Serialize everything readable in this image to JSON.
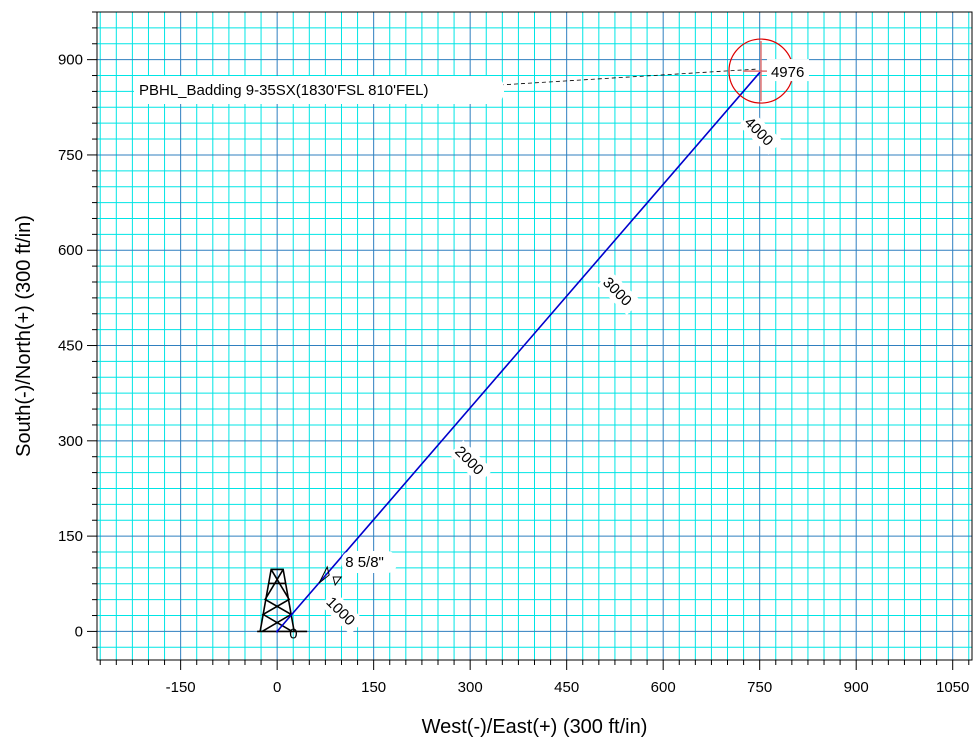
{
  "chart_data": {
    "type": "line",
    "xlabel": "West(-)/East(+) (300 ft/in)",
    "ylabel": "South(-)/North(+) (300 ft/in)",
    "xlim": [
      -280,
      1080
    ],
    "ylim": [
      -45,
      975
    ],
    "x_ticks": [
      -150,
      0,
      150,
      300,
      450,
      600,
      750,
      900,
      1050
    ],
    "y_ticks": [
      0,
      150,
      300,
      450,
      600,
      750,
      900
    ],
    "x_tick_labels": [
      "-150",
      "0",
      "150",
      "300",
      "450",
      "600",
      "750",
      "900",
      "1050"
    ],
    "y_tick_labels": [
      "0",
      "150",
      "300",
      "450",
      "600",
      "750",
      "900"
    ],
    "grid": true,
    "series": [
      {
        "values": [
          {
            "x": 0,
            "y": 0
          },
          {
            "x": 752,
            "y": 882
          }
        ]
      }
    ],
    "md_labels": [
      {
        "md": "0",
        "x": 25,
        "y": 0
      },
      {
        "md": "1000",
        "x": 75,
        "y": 45
      },
      {
        "md": "2000",
        "x": 275,
        "y": 282
      },
      {
        "md": "3000",
        "x": 505,
        "y": 548
      },
      {
        "md": "4000",
        "x": 725,
        "y": 800
      },
      {
        "md": "4976",
        "x": 752,
        "y": 882
      }
    ],
    "casing": {
      "label": "8 5/8\"",
      "x": 84,
      "y": 92
    },
    "target": {
      "label": "PBHL_Badding 9-35SX(1830'FSL 810'FEL)",
      "x": 752,
      "y": 882
    },
    "colors": {
      "grid_minor": "#00e5e5",
      "grid_major": "#2f7fbf",
      "well_path": "#0000cc",
      "target": "#dd0000",
      "target_cross": "#e07070"
    },
    "icons": [
      "drilling-rig-icon"
    ]
  }
}
